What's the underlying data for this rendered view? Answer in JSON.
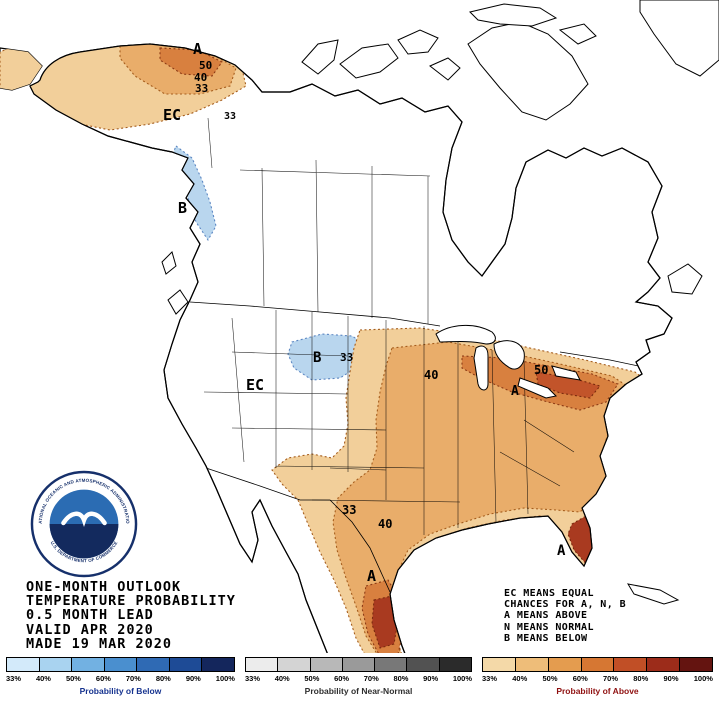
{
  "title_block": {
    "lines": [
      "ONE-MONTH OUTLOOK",
      "TEMPERATURE PROBABILITY",
      "0.5 MONTH LEAD",
      "VALID APR 2020",
      "MADE 19 MAR 2020"
    ]
  },
  "legend_note": {
    "lines": [
      "EC MEANS EQUAL",
      "CHANCES FOR A, N, B",
      "A MEANS ABOVE",
      "N MEANS NORMAL",
      "B MEANS BELOW"
    ]
  },
  "noaa_logo": {
    "ring_text_top": "NATIONAL OCEANIC AND ATMOSPHERIC ADMINISTRATION",
    "ring_text_bottom": "U.S. DEPARTMENT OF COMMERCE"
  },
  "map": {
    "region_labels": {
      "ak_a": "A",
      "ak_50": "50",
      "ak_40": "40",
      "ak_33": "33",
      "ak_coast_33": "33",
      "ak_ec": "EC",
      "ak_b": "B",
      "mt_b": "B",
      "mt_33": "33",
      "west_ec": "EC",
      "mw_40": "40",
      "ne_a": "A",
      "ne_50": "50",
      "tx_33": "33",
      "tx_40": "40",
      "tx_a": "A",
      "fl_a": "A"
    },
    "colors": {
      "land": "#ffffff",
      "outline": "#000000",
      "above_33": "#f2cf9a",
      "above_40": "#e9ad6a",
      "above_50": "#d8803f",
      "above_60": "#c2542a",
      "above_core": "#a93a20",
      "below_33": "#b9d6ee",
      "contour_above": "#a55d1d",
      "contour_below": "#5b86c2"
    }
  },
  "colorbars": [
    {
      "title": "Probability of Below",
      "title_color": "#16338f",
      "ticks": [
        "33%",
        "40%",
        "50%",
        "60%",
        "70%",
        "80%",
        "90%",
        "100%"
      ],
      "colors": [
        "#d3eafa",
        "#a9d3f0",
        "#72b1e2",
        "#4a8fcf",
        "#2f6ab4",
        "#1e4b96",
        "#14265c"
      ]
    },
    {
      "title": "Probability of Near-Normal",
      "title_color": "#2f2f2f",
      "ticks": [
        "33%",
        "40%",
        "50%",
        "60%",
        "70%",
        "80%",
        "90%",
        "100%"
      ],
      "colors": [
        "#ececec",
        "#d4d4d4",
        "#b8b8b8",
        "#9a9a9a",
        "#787878",
        "#525252",
        "#2b2b2b"
      ]
    },
    {
      "title": "Probability of Above",
      "title_color": "#8f1010",
      "ticks": [
        "33%",
        "40%",
        "50%",
        "60%",
        "70%",
        "80%",
        "90%",
        "100%"
      ],
      "colors": [
        "#f4d9a8",
        "#eebd79",
        "#e49c4f",
        "#d67733",
        "#c14f26",
        "#9c2c1a",
        "#641410"
      ]
    }
  ]
}
